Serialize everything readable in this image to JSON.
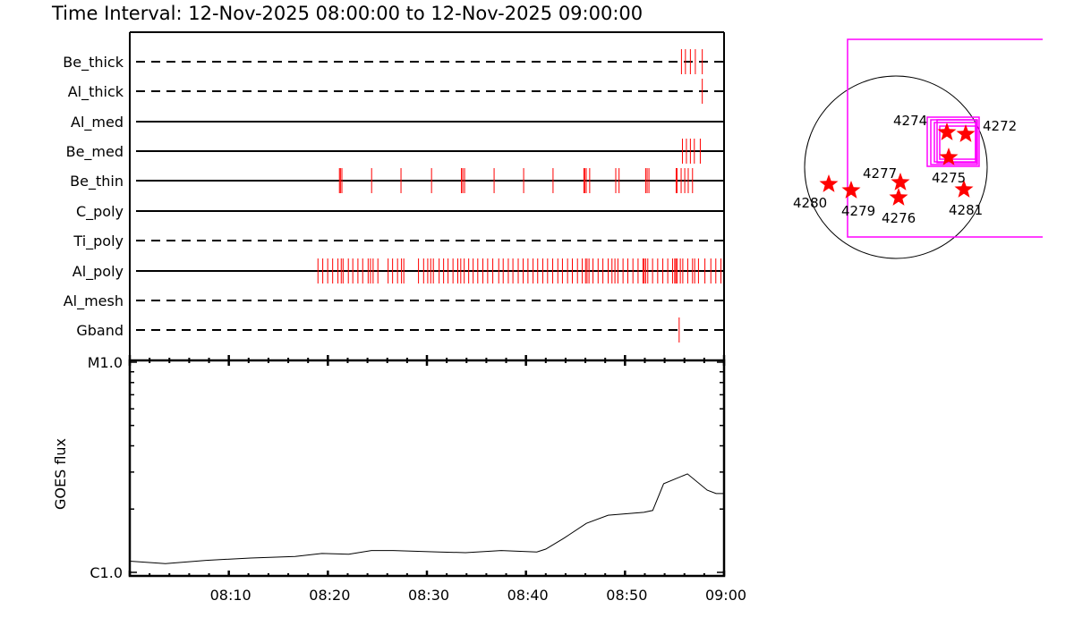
{
  "title": "Time Interval: 12-Nov-2025 08:00:00 to 12-Nov-2025 09:00:00",
  "colors": {
    "exposure": "#ff0000",
    "boxes": "#ff00ff",
    "stars": "#ff0000",
    "axes": "#000000"
  },
  "chart_data": [
    {
      "type": "timeline",
      "xrange": [
        "08:00:00",
        "09:00:00"
      ],
      "rows": [
        {
          "label": "Be_thick",
          "line": "dashed",
          "times": [
            "08:55:42",
            "08:56:06",
            "08:56:36",
            "08:57:06",
            "08:57:48"
          ]
        },
        {
          "label": "Al_thick",
          "line": "dashed",
          "times": [
            "08:57:48"
          ]
        },
        {
          "label": "Al_med",
          "line": "solid",
          "times": []
        },
        {
          "label": "Be_med",
          "line": "solid",
          "times": [
            "08:55:48",
            "08:56:12",
            "08:56:36",
            "08:57:00",
            "08:57:36"
          ]
        },
        {
          "label": "Be_thin",
          "line": "solid",
          "times": [
            "08:21:10",
            "08:21:16",
            "08:21:25",
            "08:24:25",
            "08:27:23",
            "08:30:28",
            "08:33:29",
            "08:33:37",
            "08:33:48",
            "08:36:47",
            "08:39:46",
            "08:42:44",
            "08:45:51",
            "08:45:56",
            "08:46:05",
            "08:46:26",
            "08:49:04",
            "08:49:24",
            "08:52:05",
            "08:52:14",
            "08:52:25",
            "08:55:10",
            "08:55:15",
            "08:55:40",
            "08:56:02",
            "08:56:23",
            "08:56:49"
          ]
        },
        {
          "label": "C_poly",
          "line": "solid",
          "times": []
        },
        {
          "label": "Ti_poly",
          "line": "dashed",
          "times": []
        },
        {
          "label": "Al_poly",
          "line": "solid",
          "times": [
            "08:19:00",
            "08:19:29",
            "08:19:59",
            "08:20:29",
            "08:21:01",
            "08:21:21",
            "08:21:32",
            "08:22:04",
            "08:22:31",
            "08:23:02",
            "08:23:31",
            "08:24:04",
            "08:24:18",
            "08:24:34",
            "08:25:03",
            "08:26:05",
            "08:26:32",
            "08:27:02",
            "08:27:26",
            "08:27:40",
            "08:29:09",
            "08:29:40",
            "08:30:05",
            "08:30:23",
            "08:30:39",
            "08:31:14",
            "08:31:41",
            "08:32:08",
            "08:32:38",
            "08:33:07",
            "08:33:25",
            "08:33:46",
            "08:34:13",
            "08:34:40",
            "08:35:08",
            "08:35:39",
            "08:36:08",
            "08:36:39",
            "08:37:15",
            "08:37:42",
            "08:38:13",
            "08:38:41",
            "08:39:13",
            "08:39:43",
            "08:40:12",
            "08:40:43",
            "08:41:11",
            "08:41:42",
            "08:42:11",
            "08:42:42",
            "08:43:13",
            "08:43:41",
            "08:44:12",
            "08:44:41",
            "08:45:12",
            "08:45:41",
            "08:46:01",
            "08:46:10",
            "08:46:22",
            "08:46:46",
            "08:47:17",
            "08:47:46",
            "08:48:18",
            "08:48:41",
            "08:48:59",
            "08:49:17",
            "08:49:48",
            "08:50:17",
            "08:50:48",
            "08:51:19",
            "08:51:49",
            "08:51:56",
            "08:52:05",
            "08:52:18",
            "08:52:47",
            "08:53:18",
            "08:53:49",
            "08:54:19",
            "08:54:48",
            "08:55:01",
            "08:55:08",
            "08:55:15",
            "08:55:35",
            "08:55:50",
            "08:56:20",
            "08:56:49",
            "08:57:02",
            "08:57:25",
            "08:58:04",
            "08:58:40",
            "08:59:10",
            "08:59:41"
          ]
        },
        {
          "label": "Al_mesh",
          "line": "dashed",
          "times": []
        },
        {
          "label": "Gband",
          "line": "dashed",
          "times": [
            "08:55:28"
          ]
        }
      ]
    },
    {
      "type": "line",
      "ylabel": "GOES flux",
      "yscale": "log",
      "ylim": [
        1e-06,
        1e-05
      ],
      "ytick_labels": [
        "C1.0",
        "M1.0"
      ],
      "xtick_labels": [
        "08:10",
        "08:20",
        "08:30",
        "08:40",
        "08:50",
        "09:00"
      ],
      "xrange": [
        "08:00:00",
        "09:00:00"
      ],
      "x": [
        "08:00:00",
        "08:03:36",
        "08:07:42",
        "08:12:12",
        "08:16:42",
        "08:19:24",
        "08:22:06",
        "08:24:24",
        "08:26:36",
        "08:31:12",
        "08:33:54",
        "08:37:30",
        "08:41:06",
        "08:42:00",
        "08:43:48",
        "08:46:06",
        "08:48:18",
        "08:51:54",
        "08:52:48",
        "08:53:54",
        "08:56:18",
        "08:58:18",
        "08:59:12",
        "09:00:00"
      ],
      "y": [
        1.13e-06,
        1.1e-06,
        1.14e-06,
        1.17e-06,
        1.19e-06,
        1.23e-06,
        1.22e-06,
        1.27e-06,
        1.27e-06,
        1.25e-06,
        1.24e-06,
        1.27e-06,
        1.25e-06,
        1.29e-06,
        1.45e-06,
        1.71e-06,
        1.87e-06,
        1.93e-06,
        1.97e-06,
        2.64e-06,
        2.94e-06,
        2.46e-06,
        2.37e-06,
        2.37e-06
      ]
    },
    {
      "type": "map",
      "regions": [
        "4280",
        "4279",
        "4277",
        "4276",
        "4274",
        "4272",
        "4275",
        "4281"
      ]
    }
  ]
}
